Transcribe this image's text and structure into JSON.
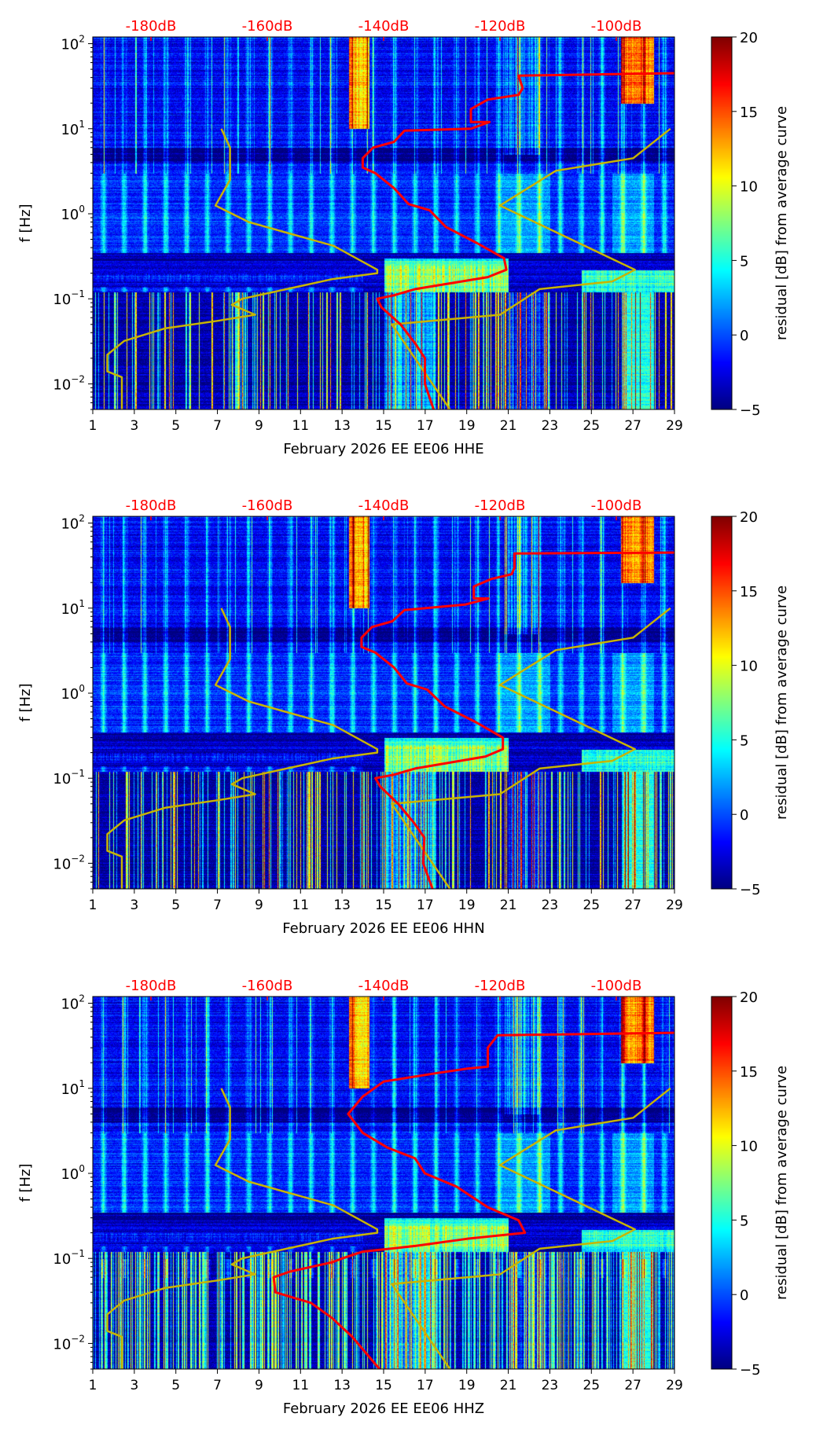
{
  "chart_data": {
    "type": "heatmap",
    "ylabel": "f [Hz]",
    "yscale": "log",
    "ylim": [
      0.005,
      120
    ],
    "yticks": [
      {
        "base": "10",
        "exp": "2",
        "value": 100
      },
      {
        "base": "10",
        "exp": "1",
        "value": 10
      },
      {
        "base": "10",
        "exp": "0",
        "value": 1
      },
      {
        "base": "10",
        "exp": "−1",
        "value": 0.1
      },
      {
        "base": "10",
        "exp": "−2",
        "value": 0.01
      }
    ],
    "xlim": [
      1,
      29
    ],
    "xticks": [
      "1",
      "3",
      "5",
      "7",
      "9",
      "11",
      "13",
      "15",
      "17",
      "19",
      "21",
      "23",
      "25",
      "27",
      "29"
    ],
    "top_axis": {
      "range_db": [
        -190,
        -90
      ],
      "ticks": [
        {
          "label": "-180dB",
          "value": -180
        },
        {
          "label": "-160dB",
          "value": -160
        },
        {
          "label": "-140dB",
          "value": -140
        },
        {
          "label": "-120dB",
          "value": -120
        },
        {
          "label": "-100dB",
          "value": -100
        }
      ],
      "color": "#ff0000"
    },
    "colorbar": {
      "label": "residual [dB] from average curve",
      "range": [
        -5,
        20
      ],
      "ticks": [
        "20",
        "15",
        "10",
        "5",
        "0",
        "−5"
      ],
      "tick_values": [
        20,
        15,
        10,
        5,
        0,
        -5
      ],
      "colormap": "jet"
    },
    "noise_models": {
      "color": "#c8b400",
      "low": [
        [
          -167.9,
          10
        ],
        [
          -166.4,
          6
        ],
        [
          -166.4,
          2.5
        ],
        [
          -168.9,
          1.25
        ],
        [
          -163.2,
          0.8
        ],
        [
          -148.6,
          0.42
        ],
        [
          -141.1,
          0.22
        ],
        [
          -141.1,
          0.2
        ],
        [
          -148.9,
          0.17
        ],
        [
          -164.3,
          0.1
        ],
        [
          -166.1,
          0.085
        ],
        [
          -162.1,
          0.065
        ],
        [
          -168.6,
          0.055
        ],
        [
          -177.5,
          0.045
        ],
        [
          -184.6,
          0.032
        ],
        [
          -187.5,
          0.022
        ],
        [
          -187.5,
          0.014
        ],
        [
          -185,
          0.012
        ],
        [
          -185,
          0.005
        ]
      ],
      "high": [
        [
          -90.7,
          10
        ],
        [
          -97.1,
          4.5
        ],
        [
          -110.4,
          3.2
        ],
        [
          -120,
          1.25
        ],
        [
          -96.8,
          0.22
        ],
        [
          -100.7,
          0.16
        ],
        [
          -113.2,
          0.13
        ],
        [
          -120,
          0.065
        ],
        [
          -138.6,
          0.05
        ],
        [
          -128.6,
          0.005
        ]
      ]
    },
    "panels": [
      {
        "title": "February 2026 EE EE06  HHE",
        "channel": "HHE",
        "psd_color": "#ff0000",
        "psd": [
          [
            -90,
            45
          ],
          [
            -116.8,
            42
          ],
          [
            -116.1,
            30
          ],
          [
            -116.8,
            25
          ],
          [
            -122.1,
            22
          ],
          [
            -125,
            17
          ],
          [
            -125,
            12
          ],
          [
            -121.8,
            12
          ],
          [
            -125,
            10
          ],
          [
            -136.4,
            9.5
          ],
          [
            -138.2,
            7
          ],
          [
            -141.8,
            6
          ],
          [
            -143.6,
            4.5
          ],
          [
            -143.6,
            3.5
          ],
          [
            -141.4,
            3
          ],
          [
            -138.2,
            2
          ],
          [
            -135.7,
            1.3
          ],
          [
            -132.1,
            1.1
          ],
          [
            -129.3,
            0.7
          ],
          [
            -123.9,
            0.45
          ],
          [
            -119.3,
            0.3
          ],
          [
            -118.9,
            0.22
          ],
          [
            -122.1,
            0.18
          ],
          [
            -134.6,
            0.13
          ],
          [
            -138.2,
            0.11
          ],
          [
            -141.1,
            0.1
          ],
          [
            -140.4,
            0.08
          ],
          [
            -137.1,
            0.05
          ],
          [
            -134.6,
            0.03
          ],
          [
            -132.9,
            0.02
          ],
          [
            -132.9,
            0.01
          ],
          [
            -131.4,
            0.005
          ]
        ],
        "seed": 11
      },
      {
        "title": "February 2026 EE EE06  HHN",
        "channel": "HHN",
        "psd_color": "#ff0000",
        "psd": [
          [
            -90,
            45
          ],
          [
            -117.5,
            44
          ],
          [
            -117.5,
            30
          ],
          [
            -118,
            25
          ],
          [
            -121.5,
            22
          ],
          [
            -124.5,
            18
          ],
          [
            -124.5,
            13
          ],
          [
            -122,
            13
          ],
          [
            -126,
            11
          ],
          [
            -136.4,
            9.5
          ],
          [
            -138.5,
            7
          ],
          [
            -142,
            6
          ],
          [
            -143.8,
            4.5
          ],
          [
            -143.8,
            3.5
          ],
          [
            -141.4,
            3
          ],
          [
            -138.2,
            2
          ],
          [
            -136,
            1.3
          ],
          [
            -132.5,
            1.1
          ],
          [
            -129.5,
            0.7
          ],
          [
            -124,
            0.45
          ],
          [
            -119.5,
            0.3
          ],
          [
            -119.5,
            0.22
          ],
          [
            -122.5,
            0.18
          ],
          [
            -134.6,
            0.13
          ],
          [
            -138.2,
            0.11
          ],
          [
            -141.4,
            0.1
          ],
          [
            -140.6,
            0.08
          ],
          [
            -137.5,
            0.05
          ],
          [
            -134.8,
            0.03
          ],
          [
            -133,
            0.02
          ],
          [
            -133.2,
            0.01
          ],
          [
            -131.6,
            0.005
          ]
        ],
        "seed": 23
      },
      {
        "title": "February 2026 EE EE06  HHZ",
        "channel": "HHZ",
        "psd_color": "#ff0000",
        "psd": [
          [
            -90,
            45
          ],
          [
            -120.4,
            42
          ],
          [
            -122.1,
            30
          ],
          [
            -122.1,
            18
          ],
          [
            -125.7,
            17
          ],
          [
            -131.1,
            15
          ],
          [
            -140,
            12
          ],
          [
            -143.6,
            8
          ],
          [
            -146.1,
            5
          ],
          [
            -143.6,
            3
          ],
          [
            -139.3,
            2
          ],
          [
            -134.6,
            1.5
          ],
          [
            -132.9,
            1.0
          ],
          [
            -127.5,
            0.7
          ],
          [
            -122.1,
            0.4
          ],
          [
            -116.8,
            0.28
          ],
          [
            -115.7,
            0.2
          ],
          [
            -125.7,
            0.17
          ],
          [
            -134.6,
            0.14
          ],
          [
            -143.6,
            0.12
          ],
          [
            -147.1,
            0.1
          ],
          [
            -148.9,
            0.09
          ],
          [
            -156.1,
            0.07
          ],
          [
            -158.9,
            0.06
          ],
          [
            -158.6,
            0.04
          ],
          [
            -152.5,
            0.03
          ],
          [
            -148.9,
            0.02
          ],
          [
            -145.4,
            0.012
          ],
          [
            -140.7,
            0.005
          ]
        ],
        "seed": 37
      }
    ]
  }
}
